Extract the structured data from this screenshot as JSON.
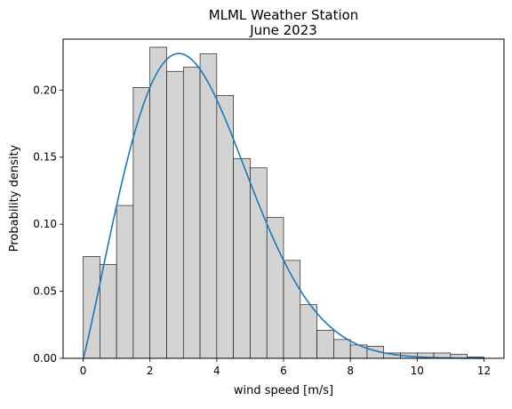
{
  "chart_data": {
    "type": "bar",
    "title_line1": "MLML Weather Station",
    "title_line2": "June 2023",
    "xlabel": "wind speed [m/s]",
    "ylabel": "Probability density",
    "xlim": [
      -0.6,
      12.6
    ],
    "ylim": [
      0,
      0.238
    ],
    "xticks": [
      0,
      2,
      4,
      6,
      8,
      10,
      12
    ],
    "xtick_labels": [
      "0",
      "2",
      "4",
      "6",
      "8",
      "10",
      "12"
    ],
    "yticks": [
      0.0,
      0.05,
      0.1,
      0.15,
      0.2
    ],
    "ytick_labels": [
      "0.00",
      "0.05",
      "0.10",
      "0.15",
      "0.20"
    ],
    "grid": false,
    "histogram": {
      "bin_width": 0.5,
      "bin_edges": [
        0,
        0.5,
        1,
        1.5,
        2,
        2.5,
        3,
        3.5,
        4,
        4.5,
        5,
        5.5,
        6,
        6.5,
        7,
        7.5,
        8,
        8.5,
        9,
        9.5,
        10,
        10.5,
        11,
        11.5,
        12
      ],
      "values": [
        0.076,
        0.07,
        0.114,
        0.202,
        0.232,
        0.214,
        0.217,
        0.227,
        0.196,
        0.149,
        0.142,
        0.105,
        0.073,
        0.04,
        0.021,
        0.014,
        0.01,
        0.009,
        0.004,
        0.004,
        0.004,
        0.004,
        0.003,
        0.001
      ],
      "fill_color": "#d3d3d3",
      "edge_color": "#000000"
    },
    "fit_curve": {
      "type": "weibull-pdf",
      "shape_k": 2.1,
      "scale_lambda": 3.9,
      "x_range": [
        0,
        12
      ],
      "color": "#1f77b4"
    }
  }
}
